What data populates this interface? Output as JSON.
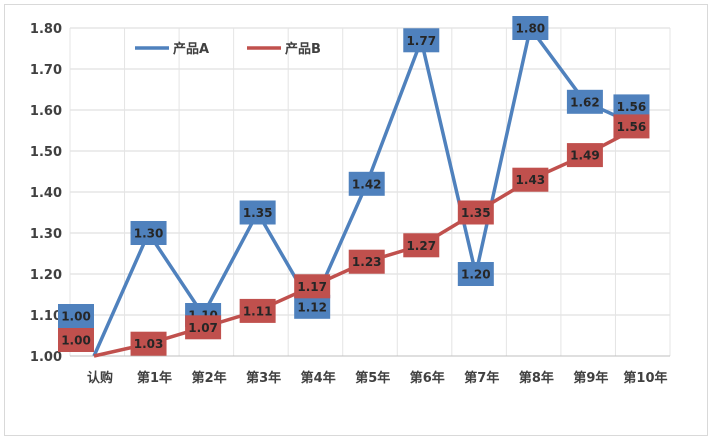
{
  "chart_data": {
    "type": "line",
    "categories": [
      "认购",
      "第1年",
      "第2年",
      "第3年",
      "第4年",
      "第5年",
      "第6年",
      "第7年",
      "第8年",
      "第9年",
      "第10年"
    ],
    "series": [
      {
        "name": "产品A",
        "color": "#4f81bd",
        "values": [
          1.0,
          1.3,
          1.1,
          1.35,
          1.12,
          1.42,
          1.77,
          1.2,
          1.8,
          1.62,
          1.56
        ],
        "labels": [
          "1.00",
          "1.30",
          "1.10",
          "1.35",
          "1.12",
          "1.42",
          "1.77",
          "1.20",
          "1.80",
          "1.62",
          "1.56"
        ]
      },
      {
        "name": "产品B",
        "color": "#c0504d",
        "values": [
          1.0,
          1.03,
          1.07,
          1.11,
          1.17,
          1.23,
          1.27,
          1.35,
          1.43,
          1.49,
          1.56
        ],
        "labels": [
          "1.00",
          "1.03",
          "1.07",
          "1.11",
          "1.17",
          "1.23",
          "1.27",
          "1.35",
          "1.43",
          "1.49",
          "1.56"
        ]
      }
    ],
    "ylim": [
      1.0,
      1.8
    ],
    "yticks": [
      "1.00",
      "1.10",
      "1.20",
      "1.30",
      "1.40",
      "1.50",
      "1.60",
      "1.70",
      "1.80"
    ],
    "grid": true,
    "legend": "top-left"
  }
}
